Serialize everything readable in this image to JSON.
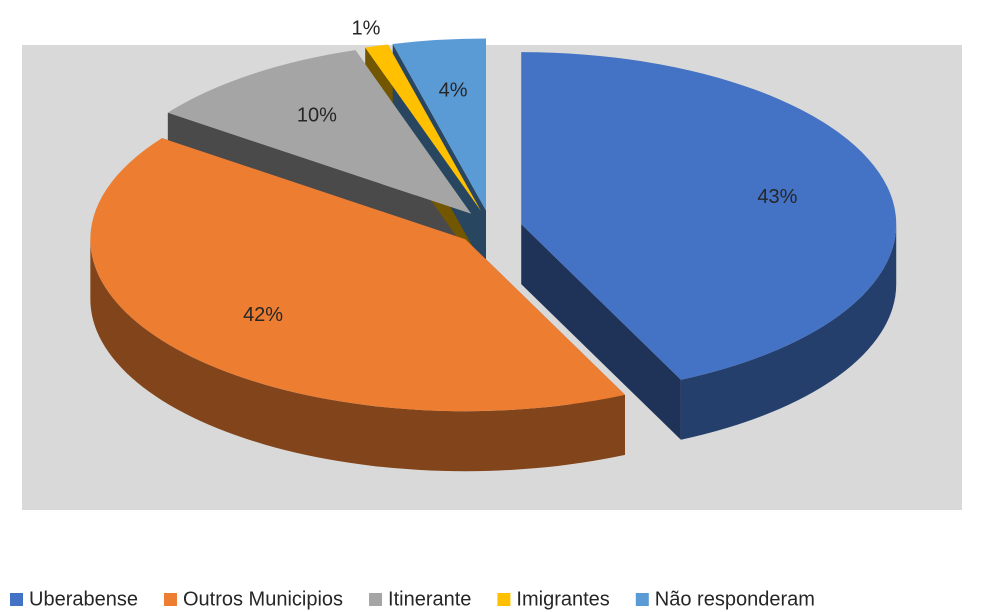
{
  "chart_data": {
    "type": "pie",
    "categories": [
      "Uberabense",
      "Outros Municipios",
      "Itinerante",
      "Imigrantes",
      "Não responderam"
    ],
    "values": [
      43,
      42,
      10,
      1,
      4
    ],
    "value_labels": [
      "43%",
      "42%",
      "10%",
      "1%",
      "4%"
    ],
    "colors": [
      "#4472c4",
      "#ed7d31",
      "#a5a5a5",
      "#ffc000",
      "#5b9bd5"
    ],
    "legend": "bottom"
  }
}
